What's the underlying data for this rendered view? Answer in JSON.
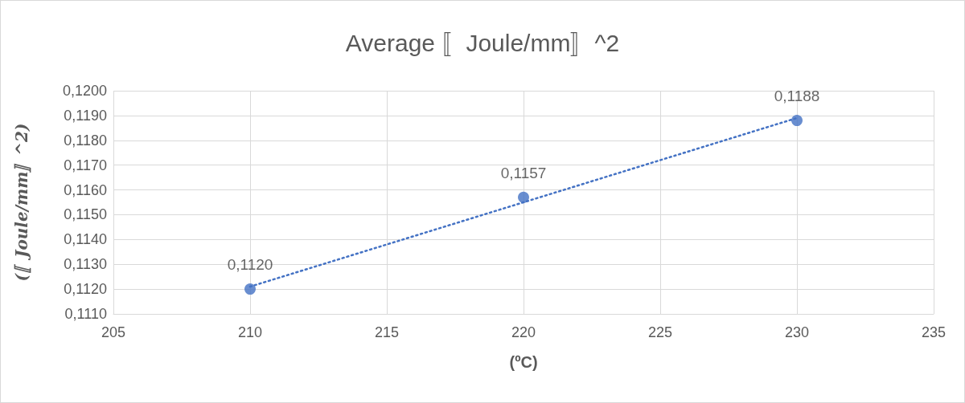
{
  "chart_data": {
    "type": "scatter",
    "title": "Average 〚Joule/mm〛^2",
    "xlabel": "(ºC)",
    "ylabel": "(〚Joule/mm〛^2)",
    "series": [
      {
        "color": "#4472c4",
        "x": [
          210,
          220,
          230
        ],
        "values": [
          0.112,
          0.1157,
          0.1188
        ],
        "value_labels": [
          "0,1120",
          "0,1157",
          "0,1188"
        ],
        "marker": "circle"
      },
      {
        "type": "line",
        "color": "#4472c4",
        "x": [
          210,
          230
        ],
        "values": [
          0.1121,
          0.1189
        ],
        "line_style": "dotted",
        "marker": "none"
      }
    ],
    "xlim": [
      205,
      235
    ],
    "xticks": [
      205,
      210,
      215,
      220,
      225,
      230,
      235
    ],
    "ylim": [
      0.111,
      0.12
    ],
    "yticks": [
      {
        "value": 0.111,
        "label": "0,1110"
      },
      {
        "value": 0.112,
        "label": "0,1120"
      },
      {
        "value": 0.113,
        "label": "0,1130"
      },
      {
        "value": 0.114,
        "label": "0,1140"
      },
      {
        "value": 0.115,
        "label": "0,1150"
      },
      {
        "value": 0.116,
        "label": "0,1160"
      },
      {
        "value": 0.117,
        "label": "0,1170"
      },
      {
        "value": 0.118,
        "label": "0,1180"
      },
      {
        "value": 0.119,
        "label": "0,1190"
      },
      {
        "value": 0.12,
        "label": "0,1200"
      }
    ],
    "grid": true
  }
}
